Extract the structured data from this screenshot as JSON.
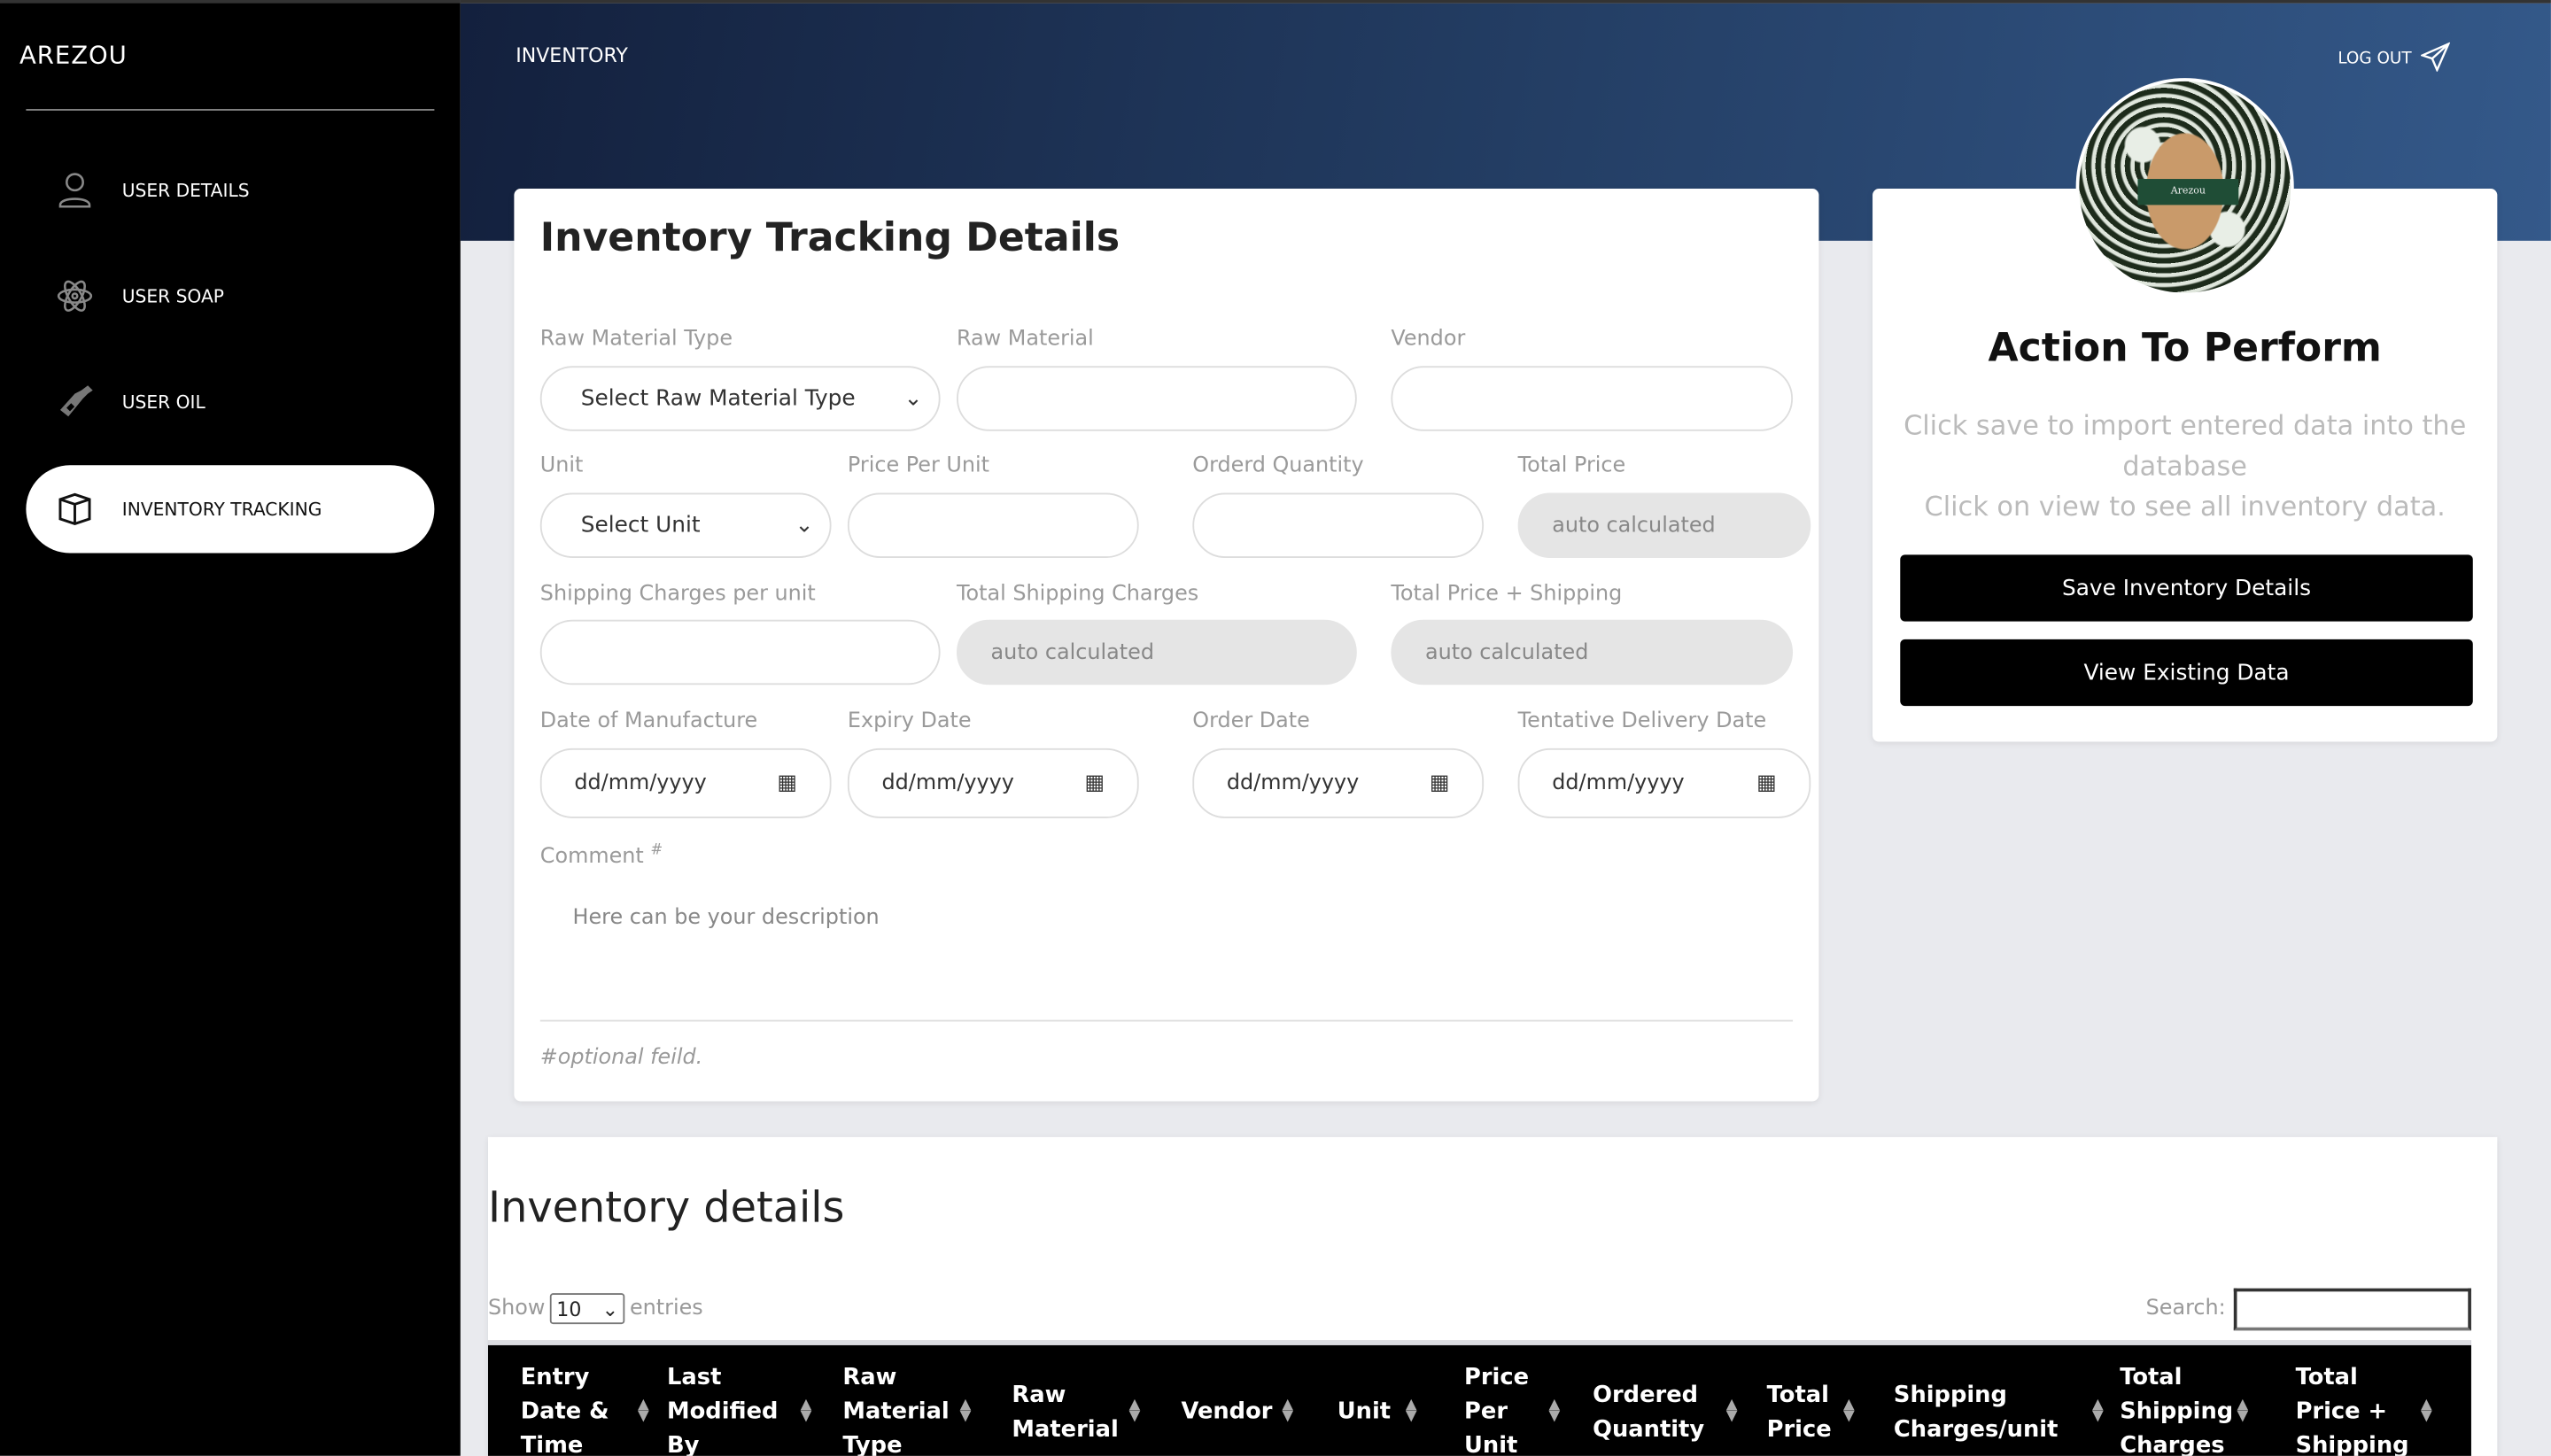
{
  "sidebar": {
    "brand": "AREZOU",
    "items": [
      {
        "label": "USER DETAILS",
        "icon": "user-icon"
      },
      {
        "label": "USER SOAP",
        "icon": "atom-icon"
      },
      {
        "label": "USER OIL",
        "icon": "bottle-icon"
      },
      {
        "label": "INVENTORY TRACKING",
        "icon": "box-icon",
        "active": true
      }
    ]
  },
  "header": {
    "title": "INVENTORY",
    "logout": "LOG OUT"
  },
  "form": {
    "title": "Inventory Tracking Details",
    "raw_material_type": {
      "label": "Raw Material Type",
      "value": "Select Raw Material Type"
    },
    "raw_material": {
      "label": "Raw Material",
      "value": ""
    },
    "vendor": {
      "label": "Vendor",
      "value": ""
    },
    "unit": {
      "label": "Unit",
      "value": "Select Unit"
    },
    "price_per_unit": {
      "label": "Price Per Unit",
      "value": ""
    },
    "ordered_quantity": {
      "label": "Orderd Quantity",
      "value": ""
    },
    "total_price": {
      "label": "Total Price",
      "value": "auto calculated"
    },
    "shipping_per_unit": {
      "label": "Shipping Charges per unit",
      "value": ""
    },
    "total_shipping": {
      "label": "Total Shipping Charges",
      "value": "auto calculated"
    },
    "total_plus_shipping": {
      "label": "Total Price + Shipping",
      "value": "auto calculated"
    },
    "date_manufacture": {
      "label": "Date of Manufacture",
      "value": "dd/mm/yyyy"
    },
    "expiry_date": {
      "label": "Expiry Date",
      "value": "dd/mm/yyyy"
    },
    "order_date": {
      "label": "Order Date",
      "value": "dd/mm/yyyy"
    },
    "delivery_date": {
      "label": "Tentative Delivery Date",
      "value": "dd/mm/yyyy"
    },
    "comment": {
      "label": "Comment",
      "mark": "#",
      "placeholder": "Here can be your description"
    },
    "note": "#optional feild."
  },
  "action": {
    "title": "Action To Perform",
    "text1": "Click save to import entered data into the database",
    "text2": "Click on view to see all inventory data.",
    "save": "Save Inventory Details",
    "view": "View Existing Data",
    "logo_text": "Arezou"
  },
  "table": {
    "title": "Inventory details",
    "show": "Show",
    "entries_value": "10",
    "entries": "entries",
    "search": "Search:",
    "columns": [
      "Entry Date & Time",
      "Last Modified By",
      "Raw Material Type",
      "Raw Material",
      "Vendor",
      "Unit",
      "Price Per Unit",
      "Ordered Quantity",
      "Total Price",
      "Shipping Charges/unit",
      "Total Shipping Charges",
      "Total Price + Shipping"
    ]
  }
}
